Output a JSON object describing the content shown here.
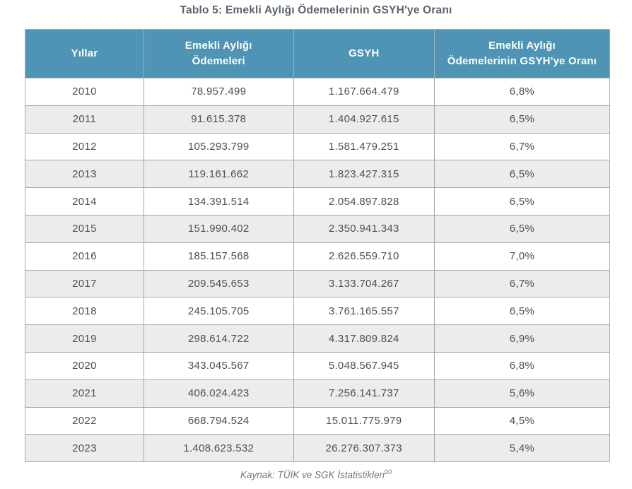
{
  "title": "Tablo 5: Emekli Aylığı Ödemelerinin GSYH'ye Oranı",
  "source": {
    "text": "Kaynak: TÜİK ve SGK İstatistikleri",
    "superscript": "20"
  },
  "colors": {
    "header_bg": "#4f94b4",
    "header_text": "#ffffff",
    "row_stripe": "#ececec",
    "border": "#a8a8a8",
    "title_text": "#5b646d",
    "cell_text": "#4f4f4f"
  },
  "table": {
    "columns": [
      "Yıllar",
      "Emekli Aylığı\nÖdemeleri",
      "GSYH",
      "Emekli Aylığı\nÖdemelerinin GSYH'ye Oranı"
    ],
    "rows": [
      [
        "2010",
        "78.957.499",
        "1.167.664.479",
        "6,8%"
      ],
      [
        "2011",
        "91.615.378",
        "1.404.927.615",
        "6,5%"
      ],
      [
        "2012",
        "105.293.799",
        "1.581.479.251",
        "6,7%"
      ],
      [
        "2013",
        "119.161.662",
        "1.823.427.315",
        "6,5%"
      ],
      [
        "2014",
        "134.391.514",
        "2.054.897.828",
        "6,5%"
      ],
      [
        "2015",
        "151.990.402",
        "2.350.941.343",
        "6,5%"
      ],
      [
        "2016",
        "185.157.568",
        "2.626.559.710",
        "7,0%"
      ],
      [
        "2017",
        "209.545.653",
        "3.133.704.267",
        "6,7%"
      ],
      [
        "2018",
        "245.105.705",
        "3.761.165.557",
        "6,5%"
      ],
      [
        "2019",
        "298.614.722",
        "4.317.809.824",
        "6,9%"
      ],
      [
        "2020",
        "343.045.567",
        "5.048.567.945",
        "6,8%"
      ],
      [
        "2021",
        "406.024.423",
        "7.256.141.737",
        "5,6%"
      ],
      [
        "2022",
        "668.794.524",
        "15.011.775.979",
        "4,5%"
      ],
      [
        "2023",
        "1.408.623.532",
        "26.276.307.373",
        "5,4%"
      ]
    ]
  },
  "chart_data": {
    "type": "table",
    "title": "Tablo 5: Emekli Aylığı Ödemelerinin GSYH'ye Oranı",
    "columns": [
      "Yıllar",
      "Emekli Aylığı Ödemeleri",
      "GSYH",
      "Emekli Aylığı Ödemelerinin GSYH'ye Oranı"
    ],
    "categories": [
      "2010",
      "2011",
      "2012",
      "2013",
      "2014",
      "2015",
      "2016",
      "2017",
      "2018",
      "2019",
      "2020",
      "2021",
      "2022",
      "2023"
    ],
    "series": [
      {
        "name": "Emekli Aylığı Ödemeleri",
        "values": [
          78957499,
          91615378,
          105293799,
          119161662,
          134391514,
          151990402,
          185157568,
          209545653,
          245105705,
          298614722,
          343045567,
          406024423,
          668794524,
          1408623532
        ]
      },
      {
        "name": "GSYH",
        "values": [
          1167664479,
          1404927615,
          1581479251,
          1823427315,
          2054897828,
          2350941343,
          2626559710,
          3133704267,
          3761165557,
          4317809824,
          5048567945,
          7256141737,
          15011775979,
          26276307373
        ]
      },
      {
        "name": "Emekli Aylığı Ödemelerinin GSYH'ye Oranı (%)",
        "values": [
          6.8,
          6.5,
          6.7,
          6.5,
          6.5,
          6.5,
          7.0,
          6.7,
          6.5,
          6.9,
          6.8,
          5.6,
          4.5,
          5.4
        ]
      }
    ],
    "footnote": "Kaynak: TÜİK ve SGK İstatistikleri (20)"
  }
}
